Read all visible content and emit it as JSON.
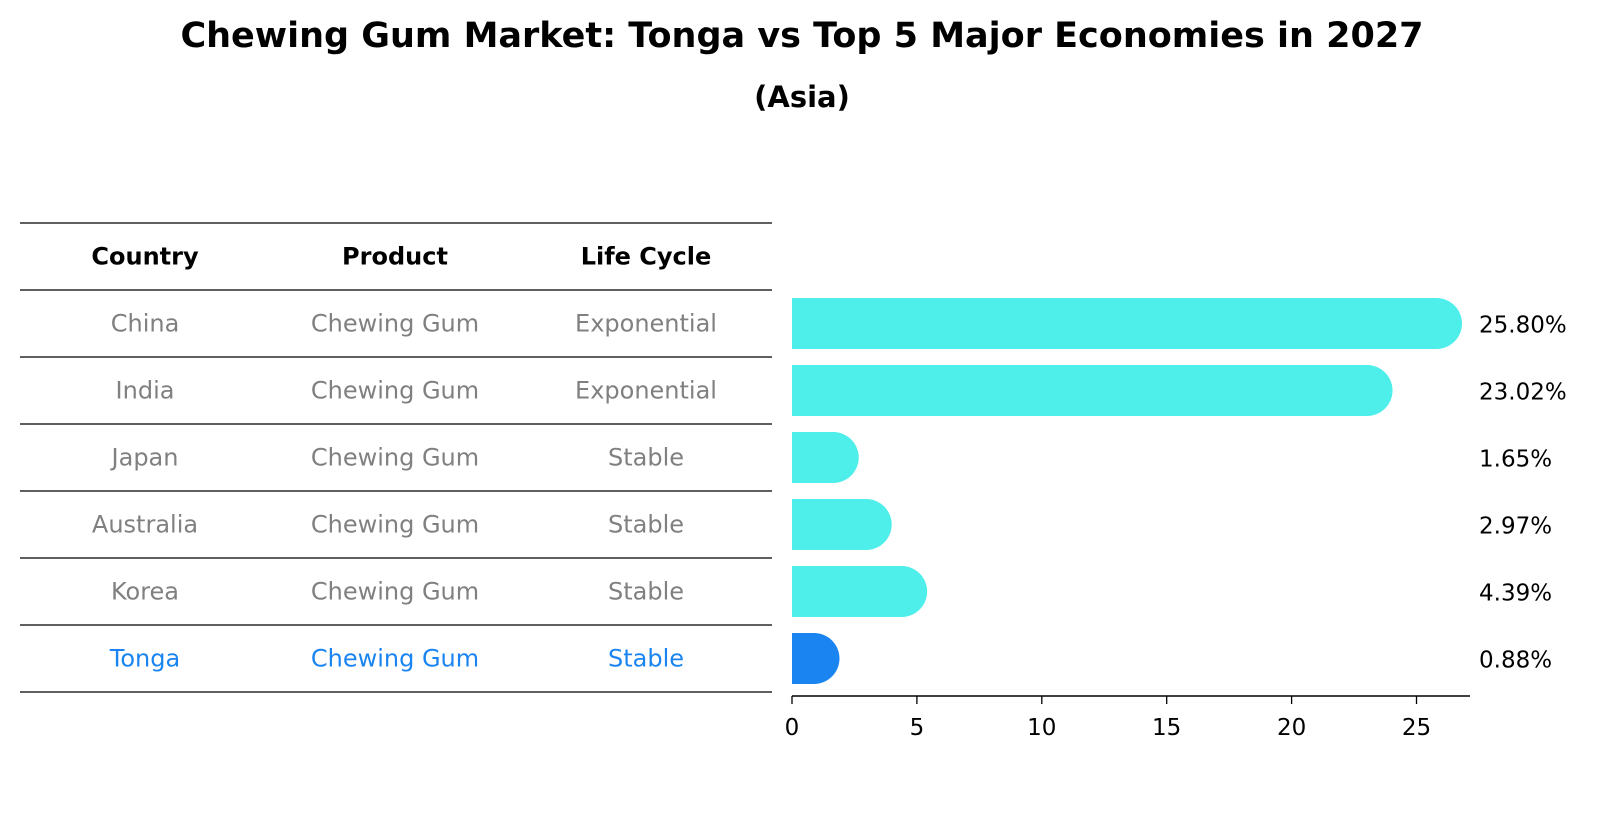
{
  "title": "Chewing Gum Market: Tonga vs Top 5 Major Economies in 2027",
  "subtitle": "(Asia)",
  "colors": {
    "bar": "#4eeeea",
    "highlight": "#1a85f0",
    "muted_text": "#808080",
    "line": "#000000"
  },
  "table": {
    "headers": [
      "Country",
      "Product",
      "Life Cycle"
    ],
    "rows": [
      {
        "country": "China",
        "product": "Chewing Gum",
        "life_cycle": "Exponential",
        "highlight": false
      },
      {
        "country": "India",
        "product": "Chewing Gum",
        "life_cycle": "Exponential",
        "highlight": false
      },
      {
        "country": "Japan",
        "product": "Chewing Gum",
        "life_cycle": "Stable",
        "highlight": false
      },
      {
        "country": "Australia",
        "product": "Chewing Gum",
        "life_cycle": "Stable",
        "highlight": false
      },
      {
        "country": "Korea",
        "product": "Chewing Gum",
        "life_cycle": "Stable",
        "highlight": false
      },
      {
        "country": "Tonga",
        "product": "Chewing Gum",
        "life_cycle": "Stable",
        "highlight": true
      }
    ]
  },
  "chart_data": {
    "type": "bar",
    "orientation": "horizontal",
    "title": "Chewing Gum Market: Tonga vs Top 5 Major Economies in 2027",
    "subtitle": "(Asia)",
    "categories": [
      "China",
      "India",
      "Japan",
      "Australia",
      "Korea",
      "Tonga"
    ],
    "values": [
      25.8,
      23.02,
      1.65,
      2.97,
      4.39,
      0.88
    ],
    "value_labels": [
      "25.80%",
      "23.02%",
      "1.65%",
      "2.97%",
      "4.39%",
      "0.88%"
    ],
    "highlight_category": "Tonga",
    "xlim": [
      0,
      27
    ],
    "xticks": [
      0,
      5,
      10,
      15,
      20,
      25
    ],
    "xlabel": "",
    "ylabel": "",
    "grid": false,
    "legend": "none"
  }
}
